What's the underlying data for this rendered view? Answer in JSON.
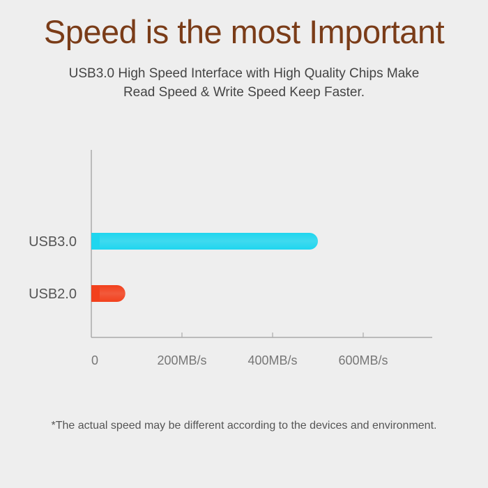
{
  "title": "Speed is the most Important",
  "subtitle_line1": "USB3.0 High Speed Interface with High Quality Chips Make",
  "subtitle_line2": "Read Speed & Write Speed Keep Faster.",
  "footnote": "*The actual speed may be different according to the devices and environment.",
  "chart_data": {
    "type": "bar",
    "orientation": "horizontal",
    "categories": [
      "USB3.0",
      "USB2.0"
    ],
    "values": [
      500,
      75
    ],
    "colors": [
      "#1fd6ef",
      "#f2401c"
    ],
    "xlim": [
      0,
      750
    ],
    "xticks": [
      0,
      200,
      400,
      600
    ],
    "xtick_labels": [
      "0",
      "200MB/s",
      "400MB/s",
      "600MB/s"
    ],
    "title": "",
    "xlabel": "",
    "ylabel": "",
    "grid": false
  }
}
